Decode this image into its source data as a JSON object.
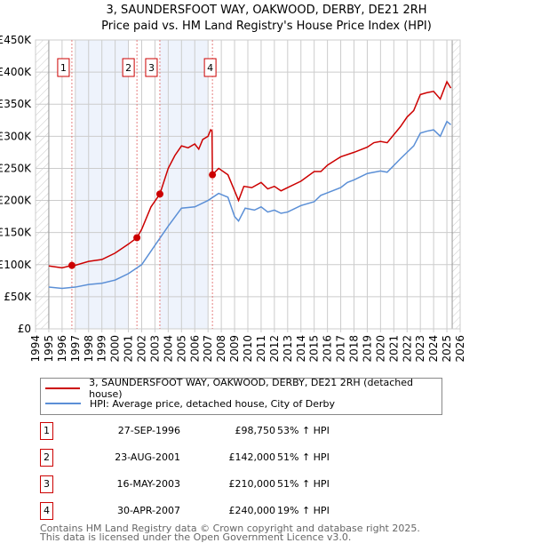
{
  "chart_data": {
    "type": "line",
    "title": "3, SAUNDERSFOOT WAY, OAKWOOD, DERBY, DE21 2RH",
    "subtitle": "Price paid vs. HM Land Registry's House Price Index (HPI)",
    "xlim": [
      1994,
      2026
    ],
    "ylim": [
      0,
      450000
    ],
    "x_ticks": [
      "1994",
      "1995",
      "1996",
      "1997",
      "1998",
      "1999",
      "2000",
      "2001",
      "2002",
      "2003",
      "2004",
      "2005",
      "2006",
      "2007",
      "2008",
      "2009",
      "2010",
      "2011",
      "2012",
      "2013",
      "2014",
      "2015",
      "2016",
      "2017",
      "2018",
      "2019",
      "2020",
      "2021",
      "2022",
      "2023",
      "2024",
      "2025",
      "2026"
    ],
    "y_ticks": [
      {
        "v": 0,
        "label": "£0"
      },
      {
        "v": 50000,
        "label": "£50K"
      },
      {
        "v": 100000,
        "label": "£100K"
      },
      {
        "v": 150000,
        "label": "£150K"
      },
      {
        "v": 200000,
        "label": "£200K"
      },
      {
        "v": 250000,
        "label": "£250K"
      },
      {
        "v": 300000,
        "label": "£300K"
      },
      {
        "v": 350000,
        "label": "£350K"
      },
      {
        "v": 400000,
        "label": "£400K"
      },
      {
        "v": 450000,
        "label": "£450K"
      }
    ],
    "shaded": [
      [
        1997,
        2001
      ],
      [
        2003.37,
        2007
      ]
    ],
    "hatched": [
      [
        1994,
        1995
      ],
      [
        2025.4,
        2026
      ]
    ],
    "series": [
      {
        "name": "3, SAUNDERSFOOT WAY, OAKWOOD, DERBY, DE21 2RH (detached house)",
        "color": "#cc0000",
        "x": [
          1995,
          1996,
          1996.74,
          1997,
          1998,
          1999,
          2000,
          2001,
          2001.64,
          2002,
          2002.7,
          2003.37,
          2004,
          2004.5,
          2005,
          2005.5,
          2006,
          2006.3,
          2006.6,
          2007,
          2007.2,
          2007.3,
          2007.33,
          2007.8,
          2008.5,
          2009,
          2009.3,
          2009.7,
          2010.3,
          2011,
          2011.5,
          2012,
          2012.5,
          2013,
          2014,
          2015,
          2015.5,
          2016,
          2017,
          2018,
          2019,
          2019.5,
          2020,
          2020.5,
          2021.5,
          2022,
          2022.5,
          2023,
          2023.5,
          2024,
          2024.5,
          2025,
          2025.3
        ],
        "y": [
          98000,
          95000,
          98750,
          99000,
          105000,
          108000,
          118000,
          132000,
          142000,
          155000,
          190000,
          210000,
          250000,
          270000,
          285000,
          282000,
          288000,
          280000,
          295000,
          300000,
          310000,
          308000,
          240000,
          250000,
          240000,
          215000,
          200000,
          222000,
          220000,
          228000,
          218000,
          222000,
          215000,
          220000,
          230000,
          245000,
          245000,
          255000,
          268000,
          275000,
          283000,
          290000,
          292000,
          290000,
          315000,
          330000,
          340000,
          365000,
          368000,
          370000,
          358000,
          385000,
          375000
        ]
      },
      {
        "name": "HPI: Average price, detached house, City of Derby",
        "color": "#5b8fd6",
        "x": [
          1995,
          1996,
          1997,
          1998,
          1999,
          2000,
          2001,
          2002,
          2003,
          2004,
          2005,
          2006,
          2007,
          2007.8,
          2008.5,
          2009,
          2009.3,
          2009.8,
          2010.5,
          2011,
          2011.5,
          2012,
          2012.5,
          2013,
          2014,
          2015,
          2015.5,
          2016,
          2017,
          2017.5,
          2018,
          2019,
          2020,
          2020.5,
          2021.5,
          2022,
          2022.5,
          2023,
          2023.5,
          2024,
          2024.5,
          2025,
          2025.3
        ],
        "y": [
          65000,
          63000,
          65000,
          69000,
          71000,
          76000,
          86000,
          100000,
          130000,
          160000,
          188000,
          190000,
          200000,
          211000,
          205000,
          175000,
          168000,
          188000,
          185000,
          190000,
          182000,
          185000,
          180000,
          182000,
          192000,
          198000,
          208000,
          212000,
          220000,
          228000,
          232000,
          242000,
          246000,
          244000,
          265000,
          275000,
          285000,
          305000,
          308000,
          310000,
          300000,
          323000,
          318000
        ]
      }
    ],
    "sales": [
      {
        "n": "1",
        "x": 1996.74,
        "date": "27-SEP-1996",
        "price": 98750,
        "price_label": "£98,750",
        "hpi": "53% ↑ HPI"
      },
      {
        "n": "2",
        "x": 2001.64,
        "date": "23-AUG-2001",
        "price": 142000,
        "price_label": "£142,000",
        "hpi": "51% ↑ HPI"
      },
      {
        "n": "3",
        "x": 2003.37,
        "date": "16-MAY-2003",
        "price": 210000,
        "price_label": "£210,000",
        "hpi": "51% ↑ HPI"
      },
      {
        "n": "4",
        "x": 2007.33,
        "date": "30-APR-2007",
        "price": 240000,
        "price_label": "£240,000",
        "hpi": "19% ↑ HPI"
      }
    ]
  },
  "footer": {
    "line1": "Contains HM Land Registry data © Crown copyright and database right 2025.",
    "line2": "This data is licensed under the Open Government Licence v3.0."
  }
}
